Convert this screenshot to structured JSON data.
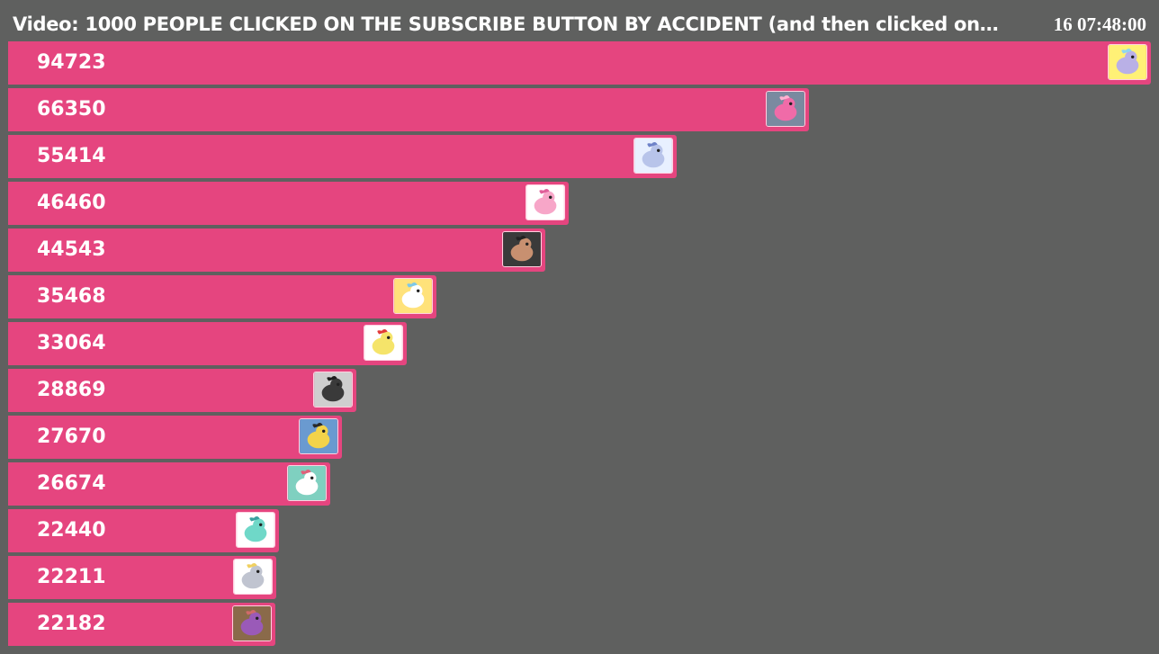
{
  "header": {
    "title": "Video: 1000 PEOPLE CLICKED ON THE SUBSCRIBE BUTTON BY ACCIDENT (and then clicked on…",
    "timestamp": "16 07:48:00"
  },
  "colors": {
    "background": "#5f605f",
    "bar": "#e5457f",
    "text": "#ffffff"
  },
  "chart_data": {
    "type": "bar",
    "orientation": "horizontal",
    "title": "Video: 1000 PEOPLE CLICKED ON THE SUBSCRIBE BUTTON BY ACCIDENT (and then clicked on…",
    "xlabel": "",
    "ylabel": "",
    "xlim": [
      0,
      94723
    ],
    "grid": false,
    "legend": "none",
    "values": [
      94723,
      66350,
      55414,
      46460,
      44543,
      35468,
      33064,
      28869,
      27670,
      26674,
      22440,
      22211,
      22182
    ],
    "value_labels": [
      "94723",
      "66350",
      "55414",
      "46460",
      "44543",
      "35468",
      "33064",
      "28869",
      "27670",
      "26674",
      "22440",
      "22211",
      "22182"
    ],
    "thumbnails": [
      "pony-lavender-icon",
      "pony-pink-icon",
      "pony-blue-icon",
      "pony-pink-small-icon",
      "person-face-icon",
      "pony-white-icon",
      "pony-yellow-red-icon",
      "dark-creature-icon",
      "pony-yellow-icon",
      "pony-white-green-icon",
      "pony-teal-icon",
      "pony-grey-icon",
      "pony-purple-icon"
    ]
  }
}
